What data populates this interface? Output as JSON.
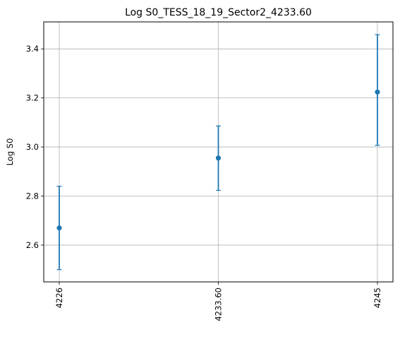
{
  "chart_data": {
    "type": "scatter",
    "title": "Log S0_TESS_18_19_Sector2_4233.60",
    "xlabel": "",
    "ylabel": "Log S0",
    "x_tick_labels": [
      "4226",
      "4233.60",
      "4245"
    ],
    "y_ticks": [
      2.6,
      2.8,
      3.0,
      3.2,
      3.4
    ],
    "y_tick_labels": [
      "2.6",
      "2.8",
      "3.0",
      "3.2",
      "3.4"
    ],
    "ylim": [
      2.45,
      3.51
    ],
    "grid": true,
    "colors": {
      "series": "#1f77b4"
    },
    "series": [
      {
        "name": "",
        "points": [
          {
            "x": "4226",
            "y": 2.67,
            "err_low": 2.5,
            "err_high": 2.84
          },
          {
            "x": "4233.60",
            "y": 2.955,
            "err_low": 2.823,
            "err_high": 3.086
          },
          {
            "x": "4245",
            "y": 3.224,
            "err_low": 3.007,
            "err_high": 3.458
          }
        ]
      }
    ]
  }
}
